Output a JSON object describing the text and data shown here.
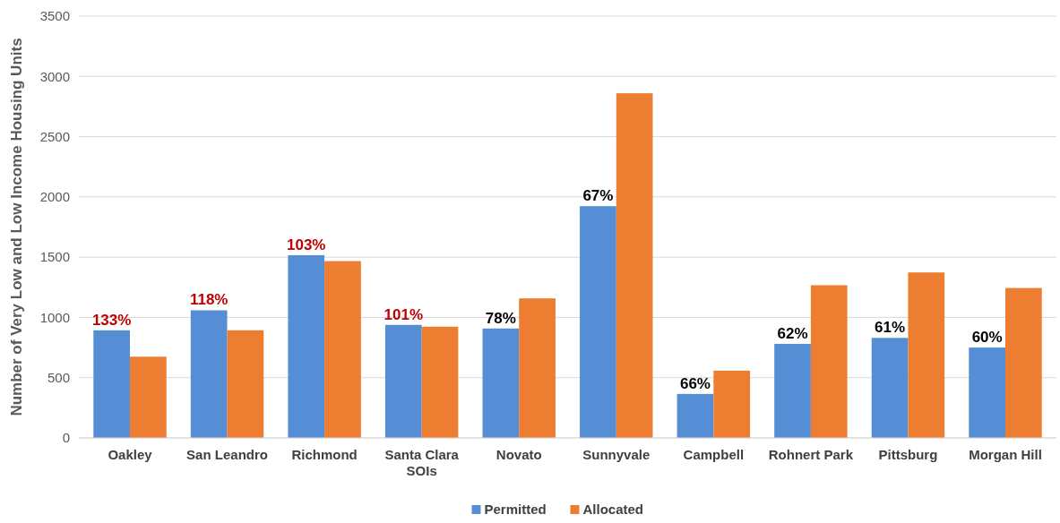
{
  "chart_data": {
    "type": "bar",
    "ylabel": "Number of Very Low and Low Income Housing Units",
    "categories": [
      "Oakley",
      "San Leandro",
      "Richmond",
      "Santa Clara SOIs",
      "Novato",
      "Sunnyvale",
      "Campbell",
      "Rohnert Park",
      "Pittsburg",
      "Morgan Hill"
    ],
    "series": [
      {
        "name": "Permitted",
        "color": "#558ed5",
        "values": [
          893,
          1059,
          1516,
          938,
          908,
          1923,
          365,
          780,
          830,
          750
        ]
      },
      {
        "name": "Allocated",
        "color": "#ed7d31",
        "values": [
          674,
          893,
          1467,
          923,
          1158,
          2860,
          558,
          1267,
          1373,
          1244
        ]
      }
    ],
    "annotations": [
      {
        "text": "133%",
        "x": "Oakley",
        "y": 893
      },
      {
        "text": "118%",
        "x": "San Leandro",
        "y": 1059
      },
      {
        "text": "103%",
        "x": "Richmond",
        "y": 1516
      },
      {
        "text": "101%",
        "x": "Santa Clara SOIs",
        "y": 938
      },
      {
        "text": "78%",
        "x": "Novato",
        "y": 908
      },
      {
        "text": "67%",
        "x": "Sunnyvale",
        "y": 1923
      },
      {
        "text": "66%",
        "x": "Campbell",
        "y": 365
      },
      {
        "text": "62%",
        "x": "Rohnert Park",
        "y": 780
      },
      {
        "text": "61%",
        "x": "Pittsburg",
        "y": 830
      },
      {
        "text": "60%",
        "x": "Morgan Hill",
        "y": 750
      }
    ],
    "ylim": [
      0,
      3500
    ],
    "yticks": [
      0,
      500,
      1000,
      1500,
      2000,
      2500,
      3000,
      3500
    ],
    "grid": "y",
    "legend": "bottom"
  }
}
